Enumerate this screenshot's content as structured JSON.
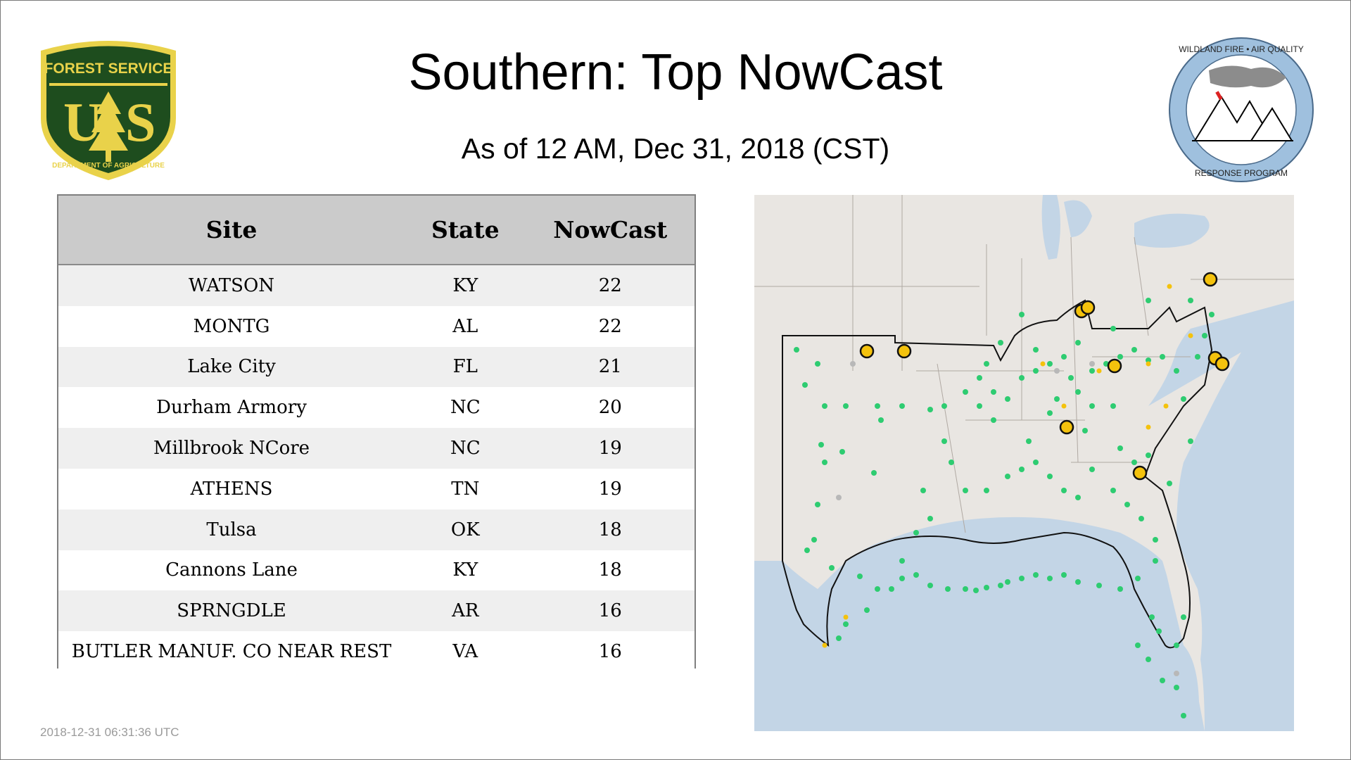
{
  "title": "Southern: Top NowCast",
  "subtitle": "As of 12 AM, Dec 31, 2018 (CST)",
  "timestamp": "2018-12-31 06:31:36 UTC",
  "logos": {
    "forest_service": {
      "top_text": "FOREST SERVICE",
      "bottom_text": "DEPARTMENT OF AGRICULTURE",
      "letters": "U S",
      "colors": {
        "green": "#1e4d1e",
        "gold": "#e9d24a"
      }
    },
    "wildland_fire": {
      "top_text": "WILDLAND FIRE • AIR QUALITY",
      "bottom_text": "RESPONSE PROGRAM",
      "colors": {
        "ring": "#9fc0de"
      }
    }
  },
  "table": {
    "headers": {
      "site": "Site",
      "state": "State",
      "nowcast": "NowCast"
    },
    "rows": [
      {
        "site": "WATSON",
        "state": "KY",
        "nowcast": "22"
      },
      {
        "site": "MONTG",
        "state": "AL",
        "nowcast": "22"
      },
      {
        "site": "Lake City",
        "state": "FL",
        "nowcast": "21"
      },
      {
        "site": "Durham Armory",
        "state": "NC",
        "nowcast": "20"
      },
      {
        "site": "Millbrook NCore",
        "state": "NC",
        "nowcast": "19"
      },
      {
        "site": "ATHENS",
        "state": "TN",
        "nowcast": "19"
      },
      {
        "site": "Tulsa",
        "state": "OK",
        "nowcast": "18"
      },
      {
        "site": "Cannons Lane",
        "state": "KY",
        "nowcast": "18"
      },
      {
        "site": "SPRNGDLE",
        "state": "AR",
        "nowcast": "16"
      },
      {
        "site": "BUTLER MANUF. CO NEAR REST",
        "state": "VA",
        "nowcast": "16"
      }
    ]
  },
  "map": {
    "colors": {
      "land": "#e9e6e2",
      "water": "#c3d5e6",
      "good": "#2ecc71",
      "moderate": "#f4c20d",
      "nodata": "#b8b8b8",
      "outline": "#111111"
    }
  }
}
